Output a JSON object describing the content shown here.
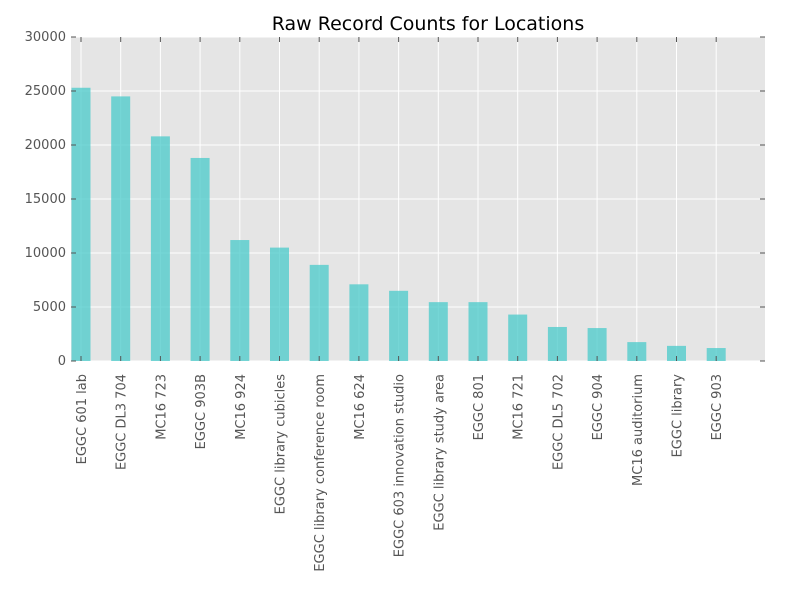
{
  "chart_data": {
    "type": "bar",
    "title": "Raw Record Counts for Locations",
    "xlabel": "",
    "ylabel": "",
    "categories": [
      "EGGC 601 lab",
      "EGGC DL3 704",
      "MC16 723",
      "EGGC 903B",
      "MC16 924",
      "EGGC library cubicles",
      "EGGC library conference room",
      "MC16 624",
      "EGGC 603 innovation studio",
      "EGGC library study area",
      "EGGC 801",
      "MC16 721",
      "EGGC DL5 702",
      "EGGC 904",
      "MC16 auditorium",
      "EGGC library",
      "EGGC 903"
    ],
    "values": [
      25300,
      24500,
      20800,
      18800,
      11200,
      10500,
      8900,
      7100,
      6500,
      5450,
      5450,
      4300,
      3150,
      3050,
      1750,
      1400,
      1200
    ],
    "ylim": [
      0,
      30000
    ],
    "yticks": [
      "0",
      "5000",
      "10000",
      "15000",
      "20000",
      "25000",
      "30000"
    ],
    "grid": true,
    "bar_color": "#48c9c9",
    "background_color": "#e5e5e5"
  }
}
